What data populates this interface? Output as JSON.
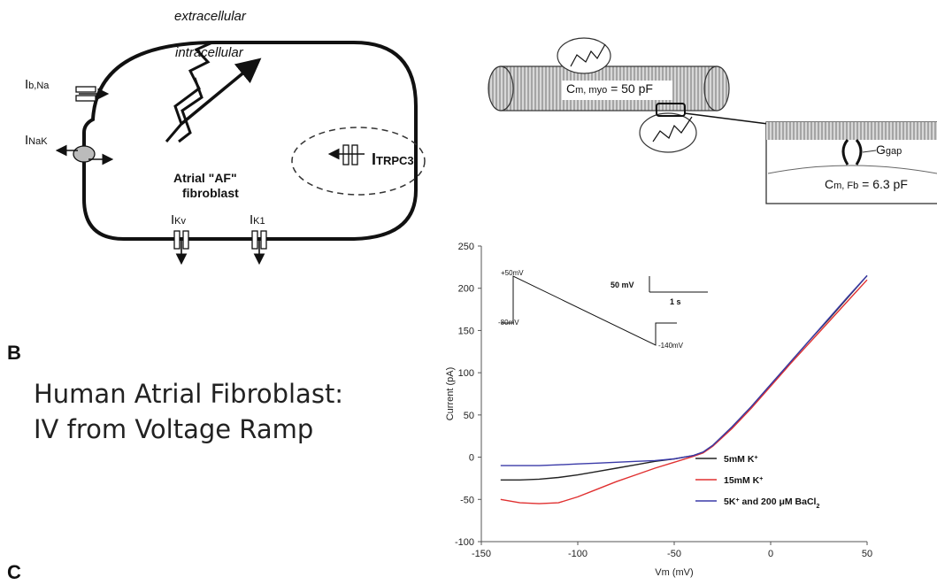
{
  "cell_diagram": {
    "extracellular": "extracellular",
    "intracellular": "intracellular",
    "cell_title_1": "Atrial \"AF\"",
    "cell_title_2": "fibroblast",
    "currents": [
      {
        "main": "I",
        "sub": "b,Na"
      },
      {
        "main": "I",
        "sub": "NaK"
      },
      {
        "main": "I",
        "sub": "TRPC3"
      },
      {
        "main": "I",
        "sub": "Kv"
      },
      {
        "main": "I",
        "sub": "K1"
      }
    ]
  },
  "coupling_diagram": {
    "cm_myo": {
      "main": "C",
      "sub": "m, myo",
      "suffix": " = 50 pF"
    },
    "cm_fb": {
      "main": "C",
      "sub": "m, Fb",
      "suffix": " = 6.3 pF"
    },
    "g_gap": {
      "main": "G",
      "sub": "gap"
    }
  },
  "panel_labels": {
    "b": "B",
    "c": "C"
  },
  "panel_b_title_line1": "Human Atrial Fibroblast:",
  "panel_b_title_line2": "IV from Voltage Ramp",
  "inset": {
    "v_start": "+50mV",
    "v_hold": "-80mV",
    "v_end": "-140mV",
    "scale_v": "50 mV",
    "scale_t": "1 s"
  },
  "chart_data": {
    "type": "line",
    "xlabel": "Vm (mV)",
    "ylabel": "Current (pA)",
    "xlim": [
      -150,
      50
    ],
    "ylim": [
      -100,
      250
    ],
    "xticks": [
      -150,
      -100,
      -50,
      0,
      50
    ],
    "yticks": [
      -100,
      -50,
      0,
      50,
      100,
      150,
      200,
      250
    ],
    "series": [
      {
        "name": "5mM K+",
        "color": "#222222",
        "x": [
          -140,
          -130,
          -120,
          -110,
          -100,
          -90,
          -80,
          -70,
          -60,
          -50,
          -40,
          -35,
          -30,
          -20,
          -10,
          0,
          10,
          20,
          30,
          40,
          50
        ],
        "y": [
          -27,
          -27,
          -26,
          -24,
          -21,
          -17,
          -13,
          -9,
          -5,
          -2,
          2,
          6,
          14,
          36,
          60,
          86,
          112,
          138,
          163,
          189,
          215
        ]
      },
      {
        "name": "15mM K+",
        "color": "#e03030",
        "x": [
          -140,
          -130,
          -120,
          -110,
          -100,
          -90,
          -80,
          -70,
          -60,
          -50,
          -40,
          -35,
          -30,
          -20,
          -10,
          0,
          10,
          20,
          30,
          40,
          50
        ],
        "y": [
          -50,
          -54,
          -55,
          -54,
          -47,
          -38,
          -29,
          -21,
          -13,
          -6,
          1,
          5,
          13,
          34,
          58,
          84,
          110,
          135,
          160,
          185,
          210
        ]
      },
      {
        "name": "5K+ and 200 μM BaCl2",
        "color": "#3a3aa8",
        "x": [
          -140,
          -130,
          -120,
          -110,
          -100,
          -90,
          -80,
          -70,
          -60,
          -50,
          -40,
          -35,
          -30,
          -20,
          -10,
          0,
          10,
          20,
          30,
          40,
          50
        ],
        "y": [
          -10,
          -10,
          -10,
          -9,
          -8,
          -7,
          -6,
          -5,
          -4,
          -2,
          2,
          6,
          14,
          36,
          60,
          86,
          112,
          138,
          164,
          190,
          215
        ]
      }
    ],
    "legend": [
      {
        "main": "5mM K",
        "sup": "+",
        "tail": ""
      },
      {
        "main": "15mM K",
        "sup": "+",
        "tail": ""
      },
      {
        "main": "5K",
        "sup": "+",
        "tail": " and 200 μM BaCl",
        "sub": "2"
      }
    ],
    "legend_position": "lower-right"
  }
}
